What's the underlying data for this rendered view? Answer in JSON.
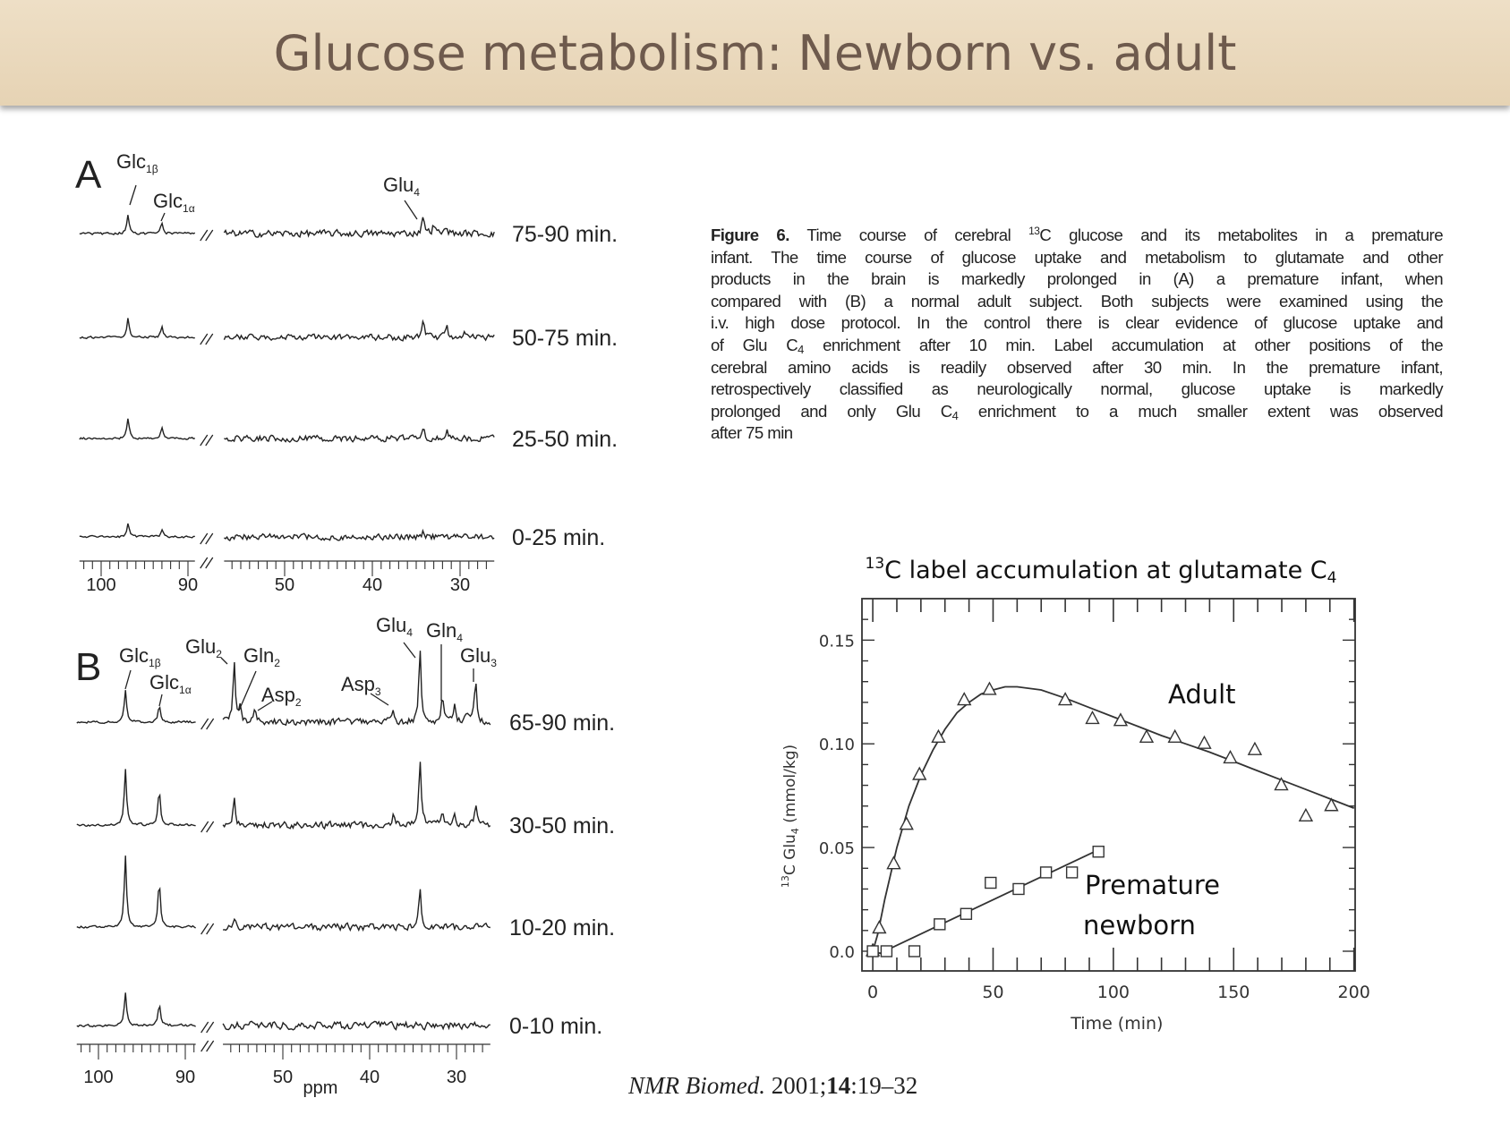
{
  "slide": {
    "title": "Glucose metabolism: Newborn vs. adult",
    "title_color": "#6e5a4d",
    "title_bg": "#ead9bc"
  },
  "caption": {
    "label": "Figure 6.",
    "lines": [
      {
        "pre": " Time course of cerebral ",
        "sup": "13",
        "post": "C glucose and its metabolites in a premature"
      },
      {
        "pre": "infant. The time course of glucose uptake and metabolism to glutamate and other"
      },
      {
        "pre": "products in the brain is markedly prolonged in (A) a premature infant, when"
      },
      {
        "pre": "compared with (B) a normal adult subject. Both subjects were examined using the"
      },
      {
        "pre": "i.v. high dose protocol. In the control there is clear evidence of glucose uptake and"
      },
      {
        "pre": "of Glu C",
        "sub": "4",
        "post": " enrichment after 10 min. Label accumulation at other positions of the"
      },
      {
        "pre": "cerebral amino acids is readily observed after 30 min. In the premature infant,"
      },
      {
        "pre": "retrospectively classified as neurologically normal, glucose uptake is markedly"
      },
      {
        "pre": "prolonged and only Glu C",
        "sub": "4",
        "post": " enrichment to a much smaller extent was observed"
      },
      {
        "pre": "after 75 min"
      }
    ]
  },
  "citation": {
    "journal": "NMR Biomed.",
    "year": " 2001;",
    "volume": "14",
    "pages": ":19–32"
  },
  "chart_data": [
    {
      "type": "line",
      "subtype": "stacked-nmr-spectra",
      "panel": "A",
      "xlabel": "",
      "x_axis_segments": [
        [
          102.5,
          89.2
        ],
        [
          56.9,
          26.1
        ]
      ],
      "x_ticks": [
        "100",
        "90",
        "50",
        "40",
        "30"
      ],
      "x_tick_values": [
        100,
        90,
        50,
        40,
        30
      ],
      "annotations": [
        {
          "base": "Glc",
          "sub": "1β",
          "ppm": 96.9
        },
        {
          "base": "Glc",
          "sub": "1α",
          "ppm": 93.0
        },
        {
          "base": "Glu",
          "sub": "4",
          "ppm": 34.2
        }
      ],
      "series": [
        {
          "name": "75-90 min.",
          "peaks": [
            [
              96.9,
              26
            ],
            [
              93.0,
              14
            ],
            [
              34.2,
              26
            ],
            [
              33.0,
              12
            ],
            [
              31.5,
              10
            ]
          ],
          "noise": 5
        },
        {
          "name": "50-75 min.",
          "peaks": [
            [
              96.9,
              26
            ],
            [
              93.0,
              14
            ],
            [
              34.2,
              18
            ],
            [
              31.5,
              12
            ],
            [
              29.5,
              10
            ]
          ],
          "noise": 4.5
        },
        {
          "name": "25-50 min.",
          "peaks": [
            [
              96.9,
              26
            ],
            [
              93.0,
              14
            ],
            [
              34.2,
              16
            ],
            [
              31.5,
              10
            ]
          ],
          "noise": 4.5
        },
        {
          "name": "0-25 min.",
          "peaks": [
            [
              96.9,
              18
            ],
            [
              93.0,
              10
            ],
            [
              34.2,
              8
            ]
          ],
          "noise": 4.5
        }
      ]
    },
    {
      "type": "line",
      "subtype": "stacked-nmr-spectra",
      "panel": "B",
      "xlabel": "ppm",
      "x_axis_segments": [
        [
          102.5,
          88.8
        ],
        [
          56.9,
          26.1
        ]
      ],
      "x_ticks": [
        "100",
        "90",
        "50",
        "40",
        "30"
      ],
      "x_tick_values": [
        100,
        90,
        50,
        40,
        30
      ],
      "annotations": [
        {
          "base": "Glc",
          "sub": "1β",
          "ppm": 96.9
        },
        {
          "base": "Glc",
          "sub": "1α",
          "ppm": 93.0
        },
        {
          "base": "Glu",
          "sub": "2",
          "ppm": 55.6
        },
        {
          "base": "Gln",
          "sub": "2",
          "ppm": 54.9
        },
        {
          "base": "Asp",
          "sub": "2",
          "ppm": 53.2
        },
        {
          "base": "Asp",
          "sub": "3",
          "ppm": 37.3
        },
        {
          "base": "Glu",
          "sub": "4",
          "ppm": 34.2
        },
        {
          "base": "Gln",
          "sub": "4",
          "ppm": 31.6
        },
        {
          "base": "Glu",
          "sub": "3",
          "ppm": 27.8
        }
      ],
      "series": [
        {
          "name": "65-90 min.",
          "peaks": [
            [
              96.9,
              46
            ],
            [
              93.0,
              25
            ],
            [
              55.6,
              82
            ],
            [
              54.9,
              22
            ],
            [
              53.2,
              16
            ],
            [
              37.3,
              20
            ],
            [
              34.2,
              100
            ],
            [
              31.6,
              36
            ],
            [
              30.2,
              22
            ],
            [
              28.8,
              18
            ],
            [
              27.8,
              58
            ]
          ],
          "noise": 5
        },
        {
          "name": "30-50 min.",
          "peaks": [
            [
              96.9,
              80
            ],
            [
              93.0,
              50
            ],
            [
              55.6,
              34
            ],
            [
              37.3,
              16
            ],
            [
              34.2,
              92
            ],
            [
              31.6,
              20
            ],
            [
              30.2,
              14
            ],
            [
              27.8,
              32
            ]
          ],
          "noise": 5
        },
        {
          "name": "10-20 min.",
          "peaks": [
            [
              96.9,
              100
            ],
            [
              93.0,
              64
            ],
            [
              55.6,
              12
            ],
            [
              34.2,
              52
            ],
            [
              27.8,
              10
            ]
          ],
          "noise": 5
        },
        {
          "name": "0-10 min.",
          "peaks": [
            [
              96.9,
              48
            ],
            [
              93.0,
              30
            ]
          ],
          "noise": 5.5
        }
      ]
    },
    {
      "type": "scatter",
      "title_pre": "",
      "title_sup": "13",
      "title_mid": "C label accumulation at glutamate C",
      "title_sub": "4",
      "xlabel": "Time (min)",
      "ylabel_sup": "13",
      "ylabel_pre": "C Glu",
      "ylabel_sub": "4",
      "ylabel_post": " (mmol/kg)",
      "xlim": [
        -4.5,
        200.5
      ],
      "ylim": [
        -0.0095,
        0.17
      ],
      "x_ticks": [
        "0",
        "50",
        "100",
        "150",
        "200"
      ],
      "x_tick_values": [
        0,
        50,
        100,
        150,
        200
      ],
      "y_ticks": [
        "0.0",
        "0.05",
        "0.10",
        "0.15"
      ],
      "y_tick_values": [
        0,
        0.05,
        0.1,
        0.15
      ],
      "grid": false,
      "series": [
        {
          "name": "Adult",
          "marker": "triangle",
          "points": [
            [
              0,
              0
            ],
            [
              2.7,
              0.011
            ],
            [
              8.7,
              0.042
            ],
            [
              14,
              0.061
            ],
            [
              19.4,
              0.085
            ],
            [
              27.3,
              0.103
            ],
            [
              38,
              0.121
            ],
            [
              48.5,
              0.126
            ],
            [
              80,
              0.121
            ],
            [
              91.3,
              0.112
            ],
            [
              103,
              0.111
            ],
            [
              113.8,
              0.103
            ],
            [
              125.6,
              0.103
            ],
            [
              137.8,
              0.1
            ],
            [
              148.6,
              0.093
            ],
            [
              158.8,
              0.097
            ],
            [
              169.8,
              0.08
            ],
            [
              180,
              0.065
            ],
            [
              190.6,
              0.07
            ]
          ],
          "fit": [
            [
              0,
              0
            ],
            [
              2,
              0.008
            ],
            [
              5,
              0.025
            ],
            [
              10,
              0.05
            ],
            [
              15,
              0.07
            ],
            [
              20,
              0.085
            ],
            [
              25,
              0.097
            ],
            [
              30,
              0.107
            ],
            [
              35,
              0.115
            ],
            [
              40,
              0.12
            ],
            [
              45,
              0.124
            ],
            [
              50,
              0.126
            ],
            [
              55,
              0.1275
            ],
            [
              60,
              0.1275
            ],
            [
              70,
              0.126
            ],
            [
              80,
              0.122
            ],
            [
              90,
              0.1175
            ],
            [
              100,
              0.113
            ],
            [
              110,
              0.1085
            ],
            [
              120,
              0.104
            ],
            [
              130,
              0.1
            ],
            [
              140,
              0.096
            ],
            [
              150,
              0.0915
            ],
            [
              160,
              0.087
            ],
            [
              170,
              0.0825
            ],
            [
              180,
              0.078
            ],
            [
              190,
              0.0735
            ],
            [
              200,
              0.069
            ]
          ]
        },
        {
          "name": "Premature newborn",
          "label_line1": "Premature",
          "label_line2": "newborn",
          "marker": "square",
          "points": [
            [
              0,
              0
            ],
            [
              5.7,
              0
            ],
            [
              17.3,
              0
            ],
            [
              27.8,
              0.013
            ],
            [
              38.8,
              0.018
            ],
            [
              49,
              0.033
            ],
            [
              60.6,
              0.03
            ],
            [
              72,
              0.038
            ],
            [
              82.8,
              0.038
            ],
            [
              93.8,
              0.048
            ]
          ],
          "fit": [
            [
              0,
              0
            ],
            [
              3,
              -0.001
            ],
            [
              94,
              0.049
            ]
          ]
        }
      ]
    }
  ]
}
